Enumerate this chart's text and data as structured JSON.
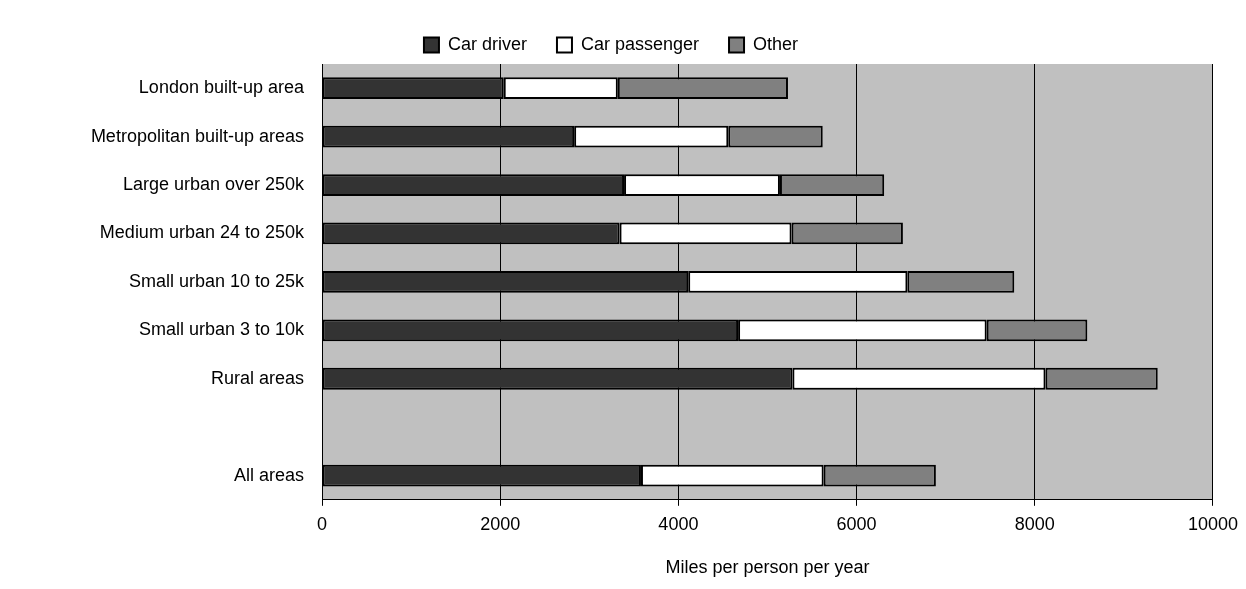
{
  "chart_data": {
    "type": "bar",
    "orientation": "horizontal",
    "stacked": true,
    "xlabel": "Miles per person per year",
    "categories": [
      "London built-up area",
      "Metropolitan built-up areas",
      "Large urban over 250k",
      "Medium urban 24 to 250k",
      "Small urban 10 to 25k",
      "Small urban 3 to 10k",
      "Rural areas",
      null,
      "All areas"
    ],
    "series": [
      {
        "name": "Car driver",
        "color": "#333333",
        "values": [
          2040,
          2830,
          3390,
          3340,
          4110,
          4670,
          5280,
          null,
          3580
        ]
      },
      {
        "name": "Car passenger",
        "color": "#ffffff",
        "values": [
          1280,
          1730,
          1750,
          1930,
          2460,
          2790,
          2840,
          null,
          2050
        ]
      },
      {
        "name": "Other",
        "color": "#808080",
        "values": [
          1910,
          1060,
          1170,
          1250,
          1200,
          1130,
          1260,
          null,
          1260
        ]
      }
    ],
    "xlim": [
      0,
      10000
    ],
    "xticks": [
      0,
      2000,
      4000,
      6000,
      8000,
      10000
    ],
    "grid": "x",
    "legend": "top"
  }
}
